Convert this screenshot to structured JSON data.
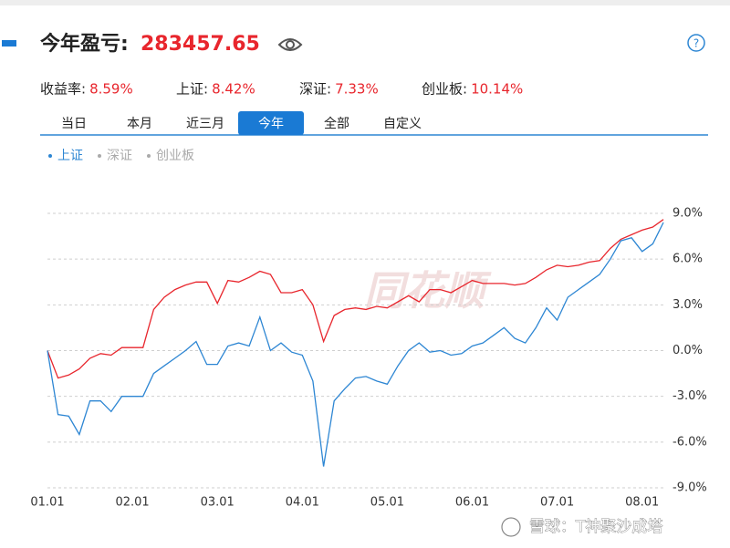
{
  "header": {
    "title": "今年盈亏:",
    "amount": "283457.65"
  },
  "stats": [
    {
      "label": "收益率:",
      "value": "8.59%"
    },
    {
      "label": "上证:",
      "value": "8.42%"
    },
    {
      "label": "深证:",
      "value": "7.33%"
    },
    {
      "label": "创业板:",
      "value": "10.14%"
    }
  ],
  "tabs": [
    "当日",
    "本月",
    "近三月",
    "今年",
    "全部",
    "自定义"
  ],
  "active_tab": 3,
  "watermark": "同花顺",
  "footer": "雪球：T神聚沙成塔",
  "chart_data": {
    "type": "line",
    "categories": [
      "01.01",
      null,
      null,
      null,
      null,
      null,
      null,
      null,
      "02.01",
      null,
      null,
      null,
      null,
      null,
      null,
      null,
      "03.01",
      null,
      null,
      null,
      null,
      null,
      null,
      null,
      "04.01",
      null,
      null,
      null,
      null,
      null,
      null,
      null,
      "05.01",
      null,
      null,
      null,
      null,
      null,
      null,
      null,
      "06.01",
      null,
      null,
      null,
      null,
      null,
      null,
      null,
      "07.01",
      null,
      null,
      null,
      null,
      null,
      null,
      null,
      "08.01",
      null,
      null
    ],
    "series": [
      {
        "color": "#e8262d",
        "values": [
          0,
          -1.8,
          -1.6,
          -1.2,
          -0.5,
          -0.2,
          -0.3,
          0.2,
          0.2,
          0.2,
          2.7,
          3.5,
          4.0,
          4.3,
          4.5,
          4.5,
          3.1,
          4.6,
          4.5,
          4.8,
          5.2,
          5.0,
          3.8,
          3.8,
          4.0,
          3.0,
          0.6,
          2.3,
          2.7,
          2.8,
          2.7,
          2.9,
          2.8,
          3.2,
          3.6,
          3.2,
          4.0,
          4.0,
          3.8,
          4.2,
          4.6,
          4.4,
          4.4,
          4.4,
          4.3,
          4.4,
          4.8,
          5.3,
          5.6,
          5.5,
          5.6,
          5.8,
          5.9,
          6.7,
          7.3,
          7.6,
          7.9,
          8.1,
          8.6
        ]
      },
      {
        "name": "上证",
        "color": "#2d86d3",
        "visible": true,
        "values": [
          0,
          -4.2,
          -4.3,
          -5.5,
          -3.3,
          -3.3,
          -4.0,
          -3.0,
          -3.0,
          -3.0,
          -1.5,
          -1.0,
          -0.5,
          0.0,
          0.6,
          -0.9,
          -0.9,
          0.3,
          0.5,
          0.3,
          2.2,
          0.0,
          0.5,
          -0.1,
          -0.3,
          -2.0,
          -7.6,
          -3.3,
          -2.5,
          -1.8,
          -1.7,
          -2.0,
          -2.2,
          -1.0,
          0.0,
          0.5,
          -0.1,
          0.0,
          -0.3,
          -0.2,
          0.3,
          0.5,
          1.0,
          1.5,
          0.8,
          0.5,
          1.5,
          2.8,
          2.0,
          3.5,
          4.0,
          4.5,
          5.0,
          6.0,
          7.2,
          7.4,
          6.5,
          7.0,
          8.4
        ]
      },
      {
        "name": "深证",
        "visible": false
      },
      {
        "name": "创业板",
        "visible": false
      }
    ],
    "ylim": [
      -9,
      9
    ],
    "yticks": [
      {
        "value": 9,
        "label": "9.0%"
      },
      {
        "value": 6,
        "label": "6.0%"
      },
      {
        "value": 3,
        "label": "3.0%"
      },
      {
        "value": 0,
        "label": "0.0%"
      },
      {
        "value": -3,
        "label": "-3.0%"
      },
      {
        "value": -6,
        "label": "-6.0%"
      },
      {
        "value": -9,
        "label": "-9.0%"
      }
    ],
    "grid": true
  }
}
